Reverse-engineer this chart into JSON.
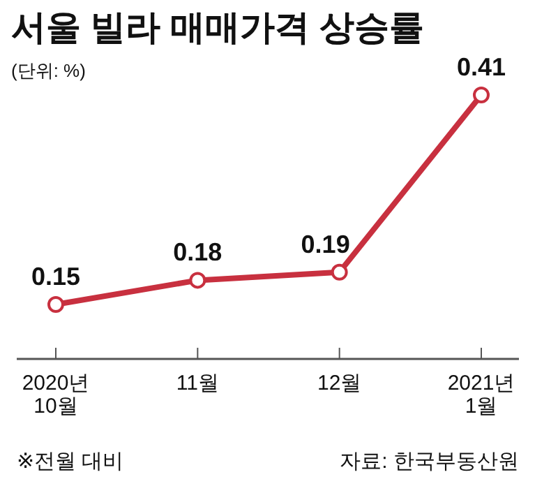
{
  "chart_data": {
    "type": "line",
    "title": "서울 빌라 매매가격 상승률",
    "subtitle": "(단위: %)",
    "categories": [
      "2020년\n10월",
      "11월",
      "12월",
      "2021년\n1월"
    ],
    "series": [
      {
        "color": "#c8303f",
        "values": [
          0.15,
          0.18,
          0.19,
          0.41
        ]
      }
    ],
    "data_labels": true,
    "marker": "circle",
    "line_style": "solid",
    "annotations": [
      "※전월 대비",
      "자료: 한국부동산원"
    ]
  }
}
